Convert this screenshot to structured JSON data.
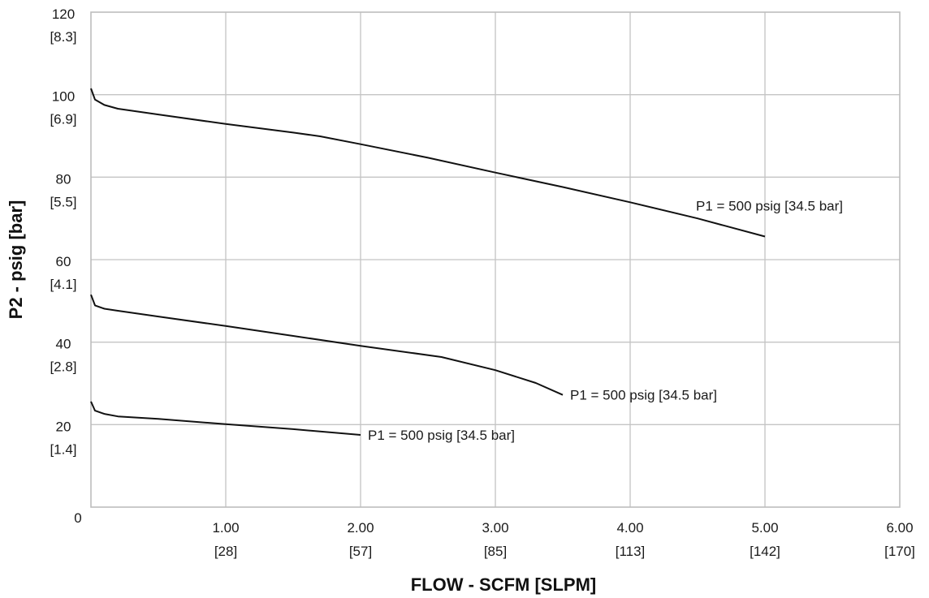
{
  "chart_data": {
    "type": "line",
    "xlabel": "FLOW - SCFM [SLPM]",
    "ylabel": "P2 - psig [bar]",
    "xlim": [
      0,
      6
    ],
    "ylim": [
      0,
      120
    ],
    "grid": true,
    "x_ticks": [
      {
        "value": 1,
        "label": "1.00",
        "sub": "[28]"
      },
      {
        "value": 2,
        "label": "2.00",
        "sub": "[57]"
      },
      {
        "value": 3,
        "label": "3.00",
        "sub": "[85]"
      },
      {
        "value": 4,
        "label": "4.00",
        "sub": "[113]"
      },
      {
        "value": 5,
        "label": "5.00",
        "sub": "[142]"
      },
      {
        "value": 6,
        "label": "6.00",
        "sub": "[170]"
      }
    ],
    "x_origin_label": "0",
    "y_ticks": [
      {
        "value": 20,
        "label": "20",
        "sub": "[1.4]"
      },
      {
        "value": 40,
        "label": "40",
        "sub": "[2.8]"
      },
      {
        "value": 60,
        "label": "60",
        "sub": "[4.1]"
      },
      {
        "value": 80,
        "label": "80",
        "sub": "[5.5]"
      },
      {
        "value": 100,
        "label": "100",
        "sub": "[6.9]"
      },
      {
        "value": 120,
        "label": "120",
        "sub": "[8.3]"
      }
    ],
    "series": [
      {
        "label": "P1 = 500 psig [34.5 bar]",
        "points": [
          [
            0,
            101.5
          ],
          [
            0.03,
            98.8
          ],
          [
            0.1,
            97.5
          ],
          [
            0.2,
            96.6
          ],
          [
            0.5,
            95.2
          ],
          [
            1.0,
            92.9
          ],
          [
            1.5,
            90.8
          ],
          [
            1.7,
            89.9
          ],
          [
            2.0,
            88.0
          ],
          [
            2.5,
            84.7
          ],
          [
            3.0,
            81.1
          ],
          [
            3.5,
            77.6
          ],
          [
            4.0,
            73.9
          ],
          [
            4.5,
            70.0
          ],
          [
            5.0,
            65.6
          ]
        ]
      },
      {
        "label": "P1 = 500 psig [34.5 bar]",
        "points": [
          [
            0,
            51.5
          ],
          [
            0.03,
            48.9
          ],
          [
            0.1,
            48.1
          ],
          [
            0.2,
            47.6
          ],
          [
            0.5,
            46.2
          ],
          [
            1.0,
            43.9
          ],
          [
            1.5,
            41.5
          ],
          [
            2.0,
            39.1
          ],
          [
            2.6,
            36.4
          ],
          [
            3.0,
            33.2
          ],
          [
            3.3,
            30.1
          ],
          [
            3.5,
            27.2
          ]
        ]
      },
      {
        "label": "P1 = 500 psig [34.5 bar]",
        "points": [
          [
            0,
            25.6
          ],
          [
            0.03,
            23.4
          ],
          [
            0.1,
            22.6
          ],
          [
            0.2,
            22.0
          ],
          [
            0.5,
            21.4
          ],
          [
            1.0,
            20.1
          ],
          [
            1.5,
            18.9
          ],
          [
            2.0,
            17.5
          ]
        ]
      }
    ]
  }
}
